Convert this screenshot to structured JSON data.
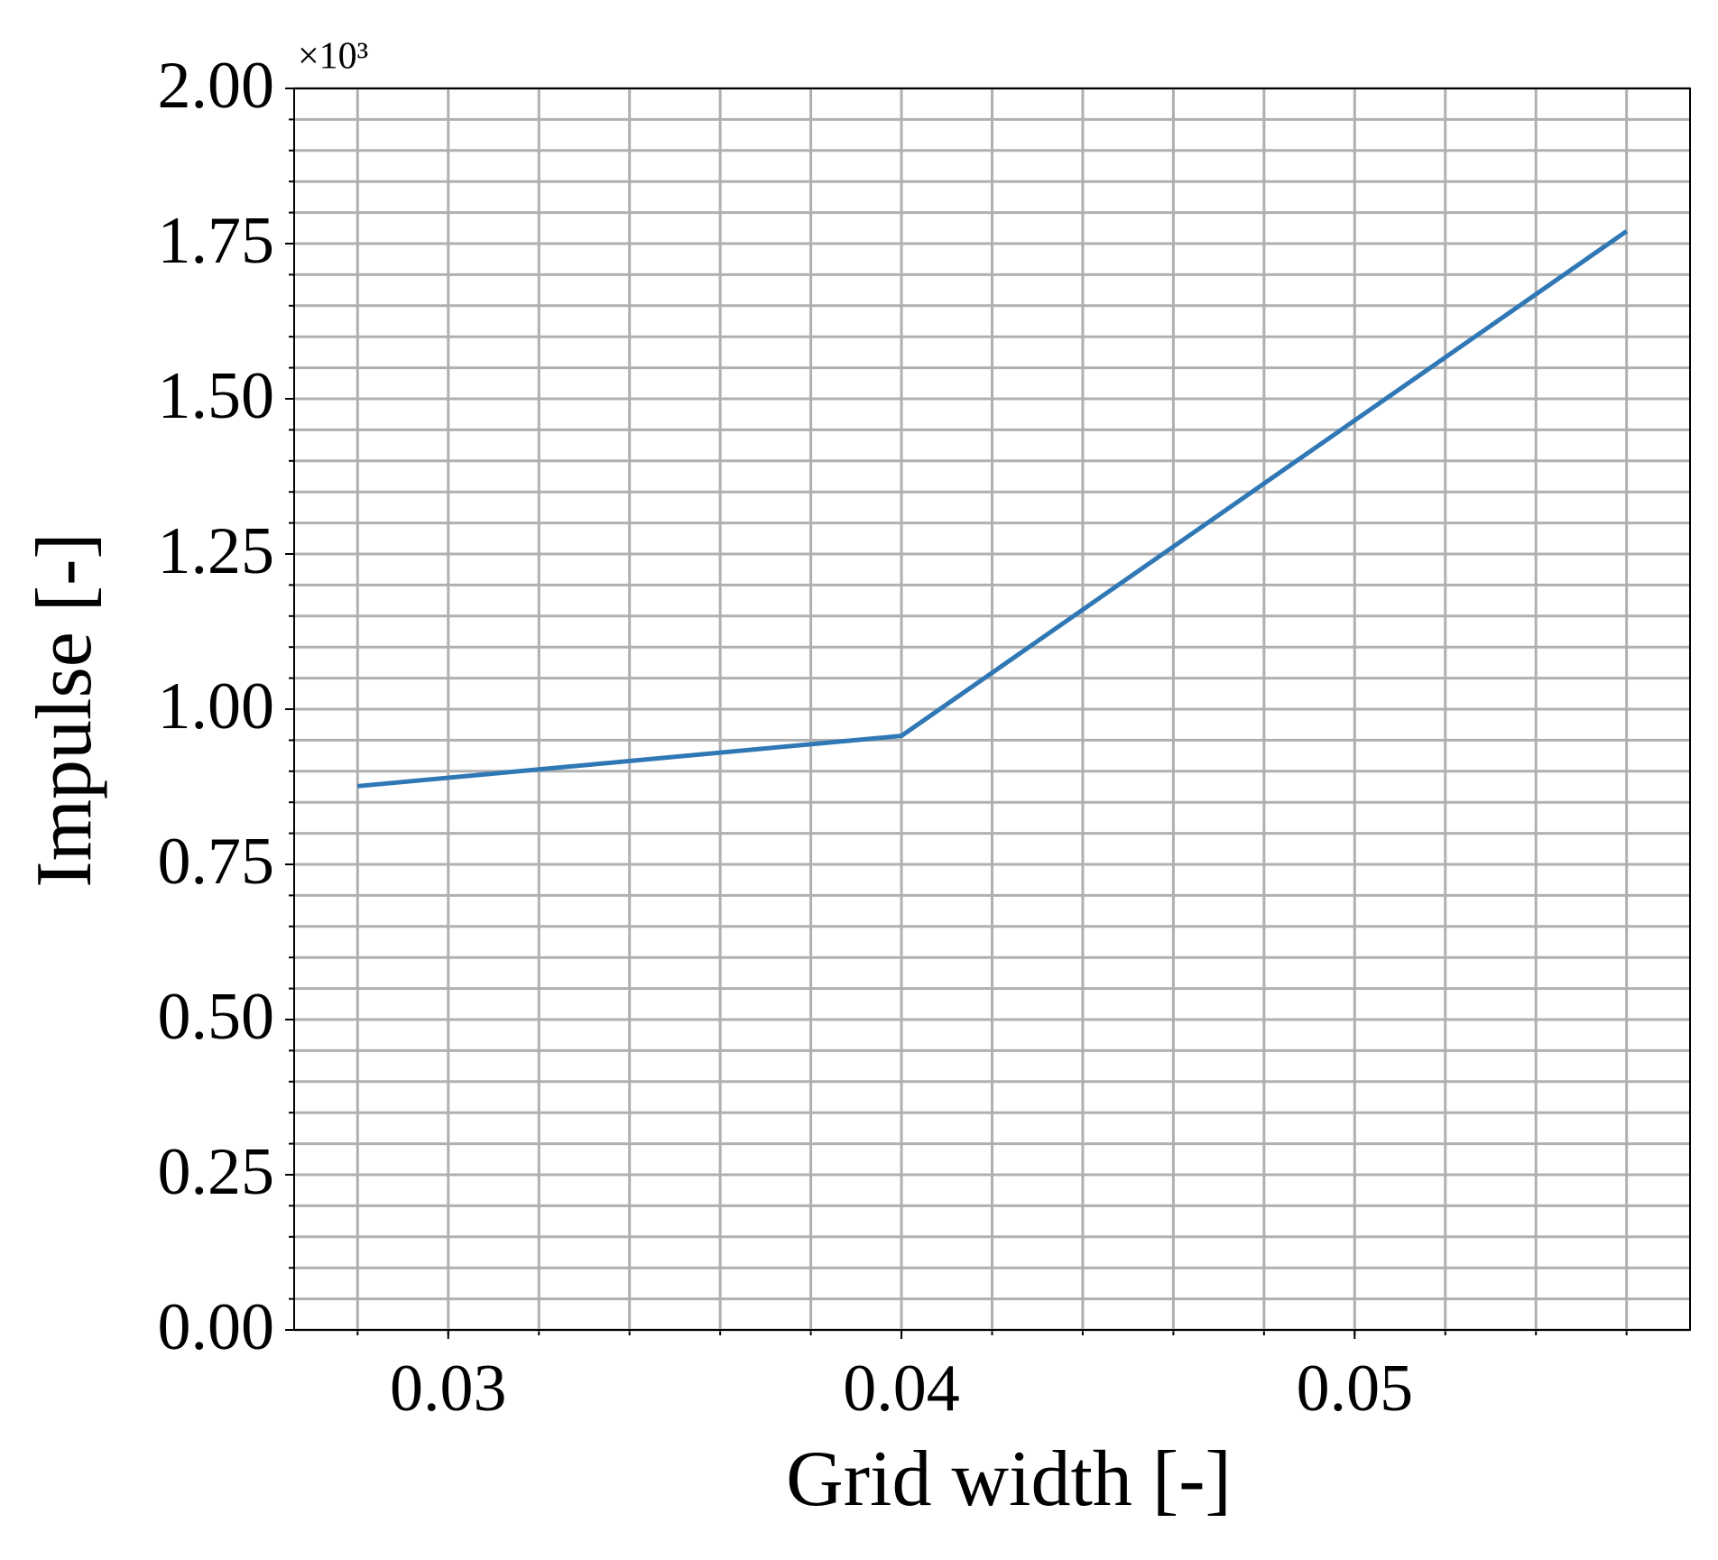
{
  "chart_data": {
    "type": "line",
    "x_label": "Grid width [-]",
    "y_label": "Impulse [-]",
    "y_offset_label": "×10³",
    "x": [
      0.028,
      0.04,
      0.056
    ],
    "series": [
      {
        "color": "#2f78b5",
        "values": [
          0.876,
          0.957,
          1.77
        ]
      }
    ],
    "xlim": [
      0.0266,
      0.0574
    ],
    "xticks": [
      0.03,
      0.04,
      0.05
    ],
    "xminor": [
      0.028,
      0.03,
      0.032,
      0.034,
      0.036,
      0.038,
      0.04,
      0.042,
      0.044,
      0.046,
      0.048,
      0.05,
      0.052,
      0.054,
      0.056
    ],
    "ylim": [
      0,
      2
    ],
    "yticks": [
      {
        "value": 0,
        "label": "0.00"
      },
      {
        "value": 0.25,
        "label": "0.25"
      },
      {
        "value": 0.5,
        "label": "0.50"
      },
      {
        "value": 0.75,
        "label": "0.75"
      },
      {
        "value": 1,
        "label": "1.00"
      },
      {
        "value": 1.25,
        "label": "1.25"
      },
      {
        "value": 1.5,
        "label": "1.50"
      },
      {
        "value": 1.75,
        "label": "1.75"
      },
      {
        "value": 2,
        "label": "2.00"
      }
    ],
    "yminor": [
      0,
      0.05,
      0.1,
      0.15,
      0.2,
      0.25,
      0.3,
      0.35,
      0.4,
      0.45,
      0.5,
      0.55,
      0.6,
      0.65,
      0.7,
      0.75,
      0.8,
      0.85,
      0.9,
      0.95,
      1,
      1.05,
      1.1,
      1.15,
      1.2,
      1.25,
      1.3,
      1.35,
      1.4,
      1.45,
      1.5,
      1.55,
      1.6,
      1.65,
      1.7,
      1.75,
      1.8,
      1.85,
      1.9,
      1.95,
      2
    ],
    "grid": true
  }
}
